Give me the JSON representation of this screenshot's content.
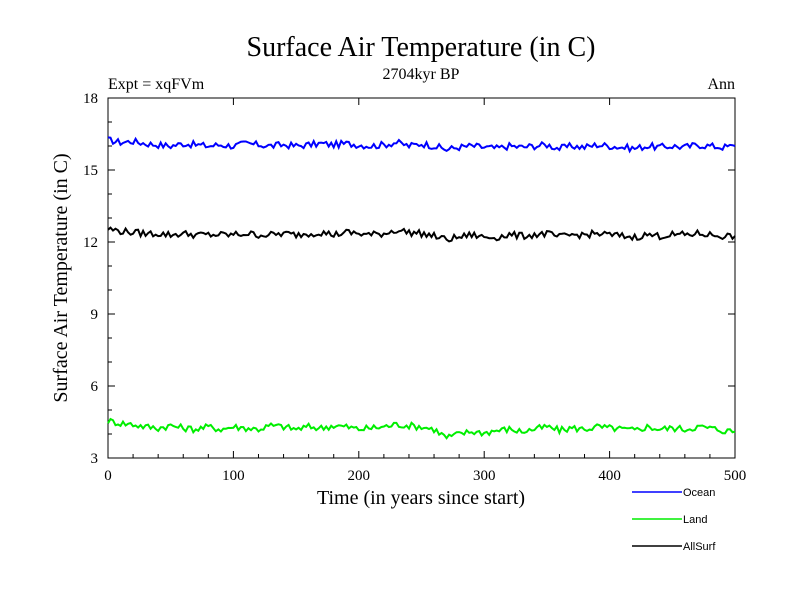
{
  "chart_data": {
    "type": "line",
    "title": "Surface Air Temperature (in C)",
    "subtitle": "2704kyr BP",
    "experiment_label": "Expt = xqFVm",
    "season_label": "Ann",
    "xlabel": "Time (in years since start)",
    "ylabel": "Surface Air Temperature (in C)",
    "xlim": [
      0,
      500
    ],
    "ylim": [
      3,
      18
    ],
    "xticks": [
      0,
      100,
      200,
      300,
      400,
      500
    ],
    "yticks": [
      3,
      6,
      9,
      12,
      15,
      18
    ],
    "legend_position": "bottom-right",
    "grid": false,
    "series": [
      {
        "name": "Ocean",
        "color": "#0000ff",
        "x_start": 0,
        "x_step": 10,
        "values": [
          16.25,
          16.15,
          16.2,
          16.1,
          16.05,
          16.0,
          16.1,
          16.05,
          16.0,
          16.05,
          16.0,
          16.1,
          16.05,
          16.0,
          16.05,
          16.0,
          16.05,
          16.1,
          16.05,
          16.1,
          16.05,
          16.0,
          16.05,
          16.15,
          16.0,
          16.1,
          16.0,
          15.85,
          15.95,
          16.0,
          15.95,
          15.9,
          16.0,
          15.95,
          16.0,
          16.05,
          15.9,
          16.0,
          15.95,
          16.05,
          16.0,
          15.95,
          15.9,
          16.0,
          15.95,
          16.0,
          15.95,
          16.05,
          16.0,
          15.95,
          16.0
        ]
      },
      {
        "name": "Land",
        "color": "#00ee00",
        "x_start": 0,
        "x_step": 10,
        "values": [
          4.55,
          4.45,
          4.4,
          4.3,
          4.25,
          4.35,
          4.25,
          4.2,
          4.3,
          4.2,
          4.3,
          4.25,
          4.2,
          4.35,
          4.3,
          4.2,
          4.3,
          4.25,
          4.35,
          4.3,
          4.2,
          4.25,
          4.3,
          4.4,
          4.35,
          4.3,
          4.2,
          3.85,
          4.0,
          4.1,
          4.05,
          4.15,
          4.2,
          4.1,
          4.2,
          4.3,
          4.15,
          4.25,
          4.2,
          4.3,
          4.25,
          4.2,
          4.15,
          4.3,
          4.2,
          4.25,
          4.2,
          4.3,
          4.25,
          4.15,
          4.1
        ]
      },
      {
        "name": "AllSurf",
        "color": "#000000",
        "x_start": 0,
        "x_step": 10,
        "values": [
          12.55,
          12.45,
          12.4,
          12.35,
          12.35,
          12.3,
          12.35,
          12.3,
          12.3,
          12.3,
          12.3,
          12.35,
          12.3,
          12.3,
          12.35,
          12.3,
          12.35,
          12.4,
          12.3,
          12.4,
          12.35,
          12.3,
          12.35,
          12.5,
          12.4,
          12.35,
          12.25,
          12.1,
          12.2,
          12.3,
          12.2,
          12.2,
          12.3,
          12.25,
          12.3,
          12.35,
          12.2,
          12.3,
          12.3,
          12.35,
          12.3,
          12.25,
          12.2,
          12.3,
          12.25,
          12.3,
          12.3,
          12.35,
          12.3,
          12.25,
          12.25
        ]
      }
    ]
  }
}
